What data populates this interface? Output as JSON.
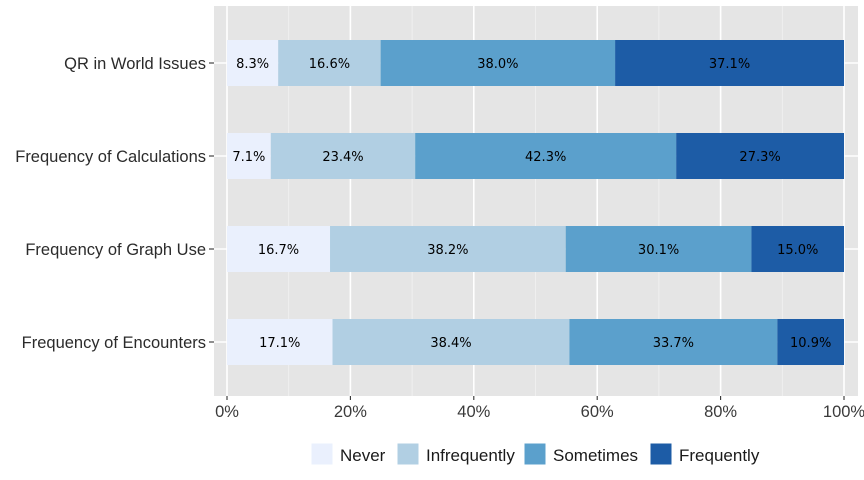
{
  "chart_data": {
    "type": "bar",
    "orientation": "horizontal",
    "stacked": true,
    "categories": [
      "QR in World Issues",
      "Frequency of Calculations",
      "Frequency of Graph Use",
      "Frequency of Encounters"
    ],
    "series": [
      {
        "name": "Never",
        "color": "#eaf0fd",
        "values": [
          8.3,
          7.1,
          16.7,
          17.1
        ],
        "labels": [
          "8.3%",
          "7.1%",
          "16.7%",
          "17.1%"
        ]
      },
      {
        "name": "Infrequently",
        "color": "#b1cfe3",
        "values": [
          16.6,
          23.4,
          38.2,
          38.4
        ],
        "labels": [
          "16.6%",
          "23.4%",
          "38.2%",
          "38.4%"
        ]
      },
      {
        "name": "Sometimes",
        "color": "#5ba0cc",
        "values": [
          38.0,
          42.3,
          30.1,
          33.7
        ],
        "labels": [
          "38.0%",
          "42.3%",
          "30.1%",
          "33.7%"
        ]
      },
      {
        "name": "Frequently",
        "color": "#1d5ca6",
        "values": [
          37.1,
          27.3,
          15.0,
          10.9
        ],
        "labels": [
          "37.1%",
          "27.3%",
          "15.0%",
          "10.9%"
        ]
      }
    ],
    "x_ticks": [
      {
        "value": 0,
        "label": "0%"
      },
      {
        "value": 20,
        "label": "20%"
      },
      {
        "value": 40,
        "label": "40%"
      },
      {
        "value": 60,
        "label": "60%"
      },
      {
        "value": 80,
        "label": "80%"
      },
      {
        "value": 100,
        "label": "100%"
      }
    ],
    "xlim": [
      0,
      100
    ],
    "title": "",
    "xlabel": "",
    "ylabel": "",
    "grid": true,
    "panel_background": "#e5e5e5",
    "legend_position": "bottom"
  }
}
